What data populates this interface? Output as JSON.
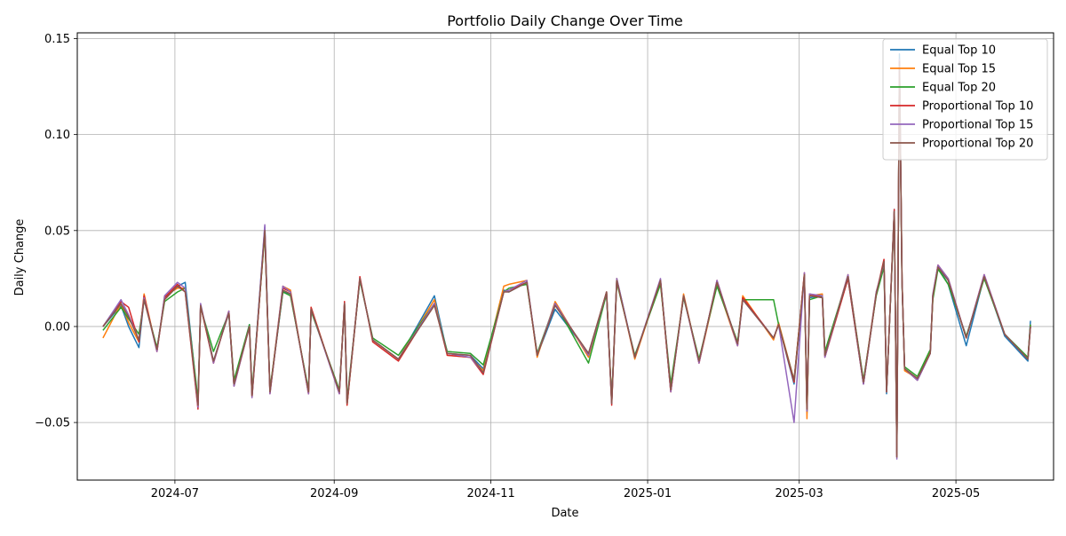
{
  "chart_data": {
    "type": "line",
    "title": "Portfolio Daily Change Over Time",
    "xlabel": "Date",
    "ylabel": "Daily Change",
    "xlim": [
      "2024-05-24",
      "2025-06-08"
    ],
    "ylim": [
      -0.08,
      0.153
    ],
    "x_ticks": [
      "2024-07",
      "2024-09",
      "2024-11",
      "2025-01",
      "2025-03",
      "2025-05"
    ],
    "y_ticks": [
      "−0.05",
      "0.00",
      "0.05",
      "0.10",
      "0.15"
    ],
    "y_tick_values": [
      -0.05,
      0.0,
      0.05,
      0.1,
      0.15
    ],
    "grid": true,
    "legend_position": "top-right",
    "x": [
      "2024-06-03",
      "2024-06-10",
      "2024-06-13",
      "2024-06-17",
      "2024-06-19",
      "2024-06-24",
      "2024-06-27",
      "2024-07-02",
      "2024-07-05",
      "2024-07-10",
      "2024-07-11",
      "2024-07-16",
      "2024-07-22",
      "2024-07-24",
      "2024-07-30",
      "2024-07-31",
      "2024-08-05",
      "2024-08-07",
      "2024-08-12",
      "2024-08-15",
      "2024-08-22",
      "2024-08-23",
      "2024-09-03",
      "2024-09-05",
      "2024-09-06",
      "2024-09-11",
      "2024-09-16",
      "2024-09-26",
      "2024-10-10",
      "2024-10-15",
      "2024-10-24",
      "2024-10-29",
      "2024-11-06",
      "2024-11-08",
      "2024-11-15",
      "2024-11-19",
      "2024-11-26",
      "2024-12-09",
      "2024-12-16",
      "2024-12-18",
      "2024-12-20",
      "2024-12-27",
      "2025-01-06",
      "2025-01-10",
      "2025-01-15",
      "2025-01-21",
      "2025-01-28",
      "2025-02-05",
      "2025-02-07",
      "2025-02-19",
      "2025-02-21",
      "2025-02-27",
      "2025-03-03",
      "2025-03-04",
      "2025-03-05",
      "2025-03-10",
      "2025-03-11",
      "2025-03-20",
      "2025-03-26",
      "2025-03-31",
      "2025-04-03",
      "2025-04-04",
      "2025-04-07",
      "2025-04-08",
      "2025-04-09",
      "2025-04-10",
      "2025-04-11",
      "2025-04-16",
      "2025-04-21",
      "2025-04-22",
      "2025-04-24",
      "2025-04-28",
      "2025-05-05",
      "2025-05-12",
      "2025-05-20",
      "2025-05-29",
      "2025-05-30"
    ],
    "series": [
      {
        "name": "Equal Top 10",
        "color": "#1f77b4",
        "values": [
          0,
          0.011,
          0,
          -0.011,
          0.015,
          -0.012,
          0.015,
          0.021,
          0.023,
          -0.04,
          0.011,
          -0.018,
          0.007,
          -0.031,
          0.001,
          -0.036,
          0.052,
          -0.034,
          0.018,
          0.017,
          -0.034,
          0.009,
          -0.034,
          0.012,
          -0.04,
          0.025,
          -0.007,
          -0.017,
          0.016,
          -0.014,
          -0.015,
          -0.022,
          0.019,
          0.018,
          0.023,
          -0.015,
          0.009,
          -0.014,
          0.017,
          -0.04,
          0.025,
          -0.016,
          0.024,
          -0.033,
          0.016,
          -0.018,
          0.023,
          -0.009,
          0.015,
          -0.006,
          0.001,
          -0.03,
          0.027,
          -0.045,
          0.015,
          0.016,
          -0.015,
          0.025,
          -0.03,
          0.017,
          0.034,
          -0.035,
          0.061,
          -0.068,
          0.142,
          0.024,
          -0.022,
          -0.028,
          -0.014,
          0.016,
          0.031,
          0.022,
          -0.01,
          0.026,
          -0.005,
          -0.018,
          0.003
        ]
      },
      {
        "name": "Equal Top 15",
        "color": "#ff7f0e",
        "values": [
          -0.006,
          0.012,
          0.002,
          -0.008,
          0.017,
          -0.013,
          0.016,
          0.02,
          0.02,
          -0.042,
          0.011,
          -0.019,
          0.008,
          -0.03,
          0,
          -0.036,
          0.05,
          -0.034,
          0.021,
          0.019,
          -0.035,
          0.01,
          -0.035,
          0.012,
          -0.041,
          0.025,
          -0.007,
          -0.017,
          0.014,
          -0.015,
          -0.016,
          -0.023,
          0.021,
          0.022,
          0.024,
          -0.016,
          0.013,
          -0.016,
          0.018,
          -0.039,
          0.025,
          -0.017,
          0.024,
          -0.034,
          0.017,
          -0.019,
          0.022,
          -0.01,
          0.016,
          -0.007,
          0.002,
          -0.028,
          0.027,
          -0.048,
          0.016,
          0.017,
          -0.015,
          0.027,
          -0.029,
          0.018,
          0.033,
          -0.034,
          0.06,
          -0.067,
          0.139,
          0.025,
          -0.023,
          -0.027,
          -0.013,
          0.015,
          0.032,
          0.024,
          -0.006,
          0.026,
          -0.004,
          -0.017,
          0.001
        ]
      },
      {
        "name": "Equal Top 20",
        "color": "#2ca02c",
        "values": [
          -0.002,
          0.01,
          0.004,
          -0.004,
          0.014,
          -0.011,
          0.013,
          0.018,
          0.02,
          -0.038,
          0.01,
          -0.013,
          0.007,
          -0.028,
          0.001,
          -0.034,
          0.048,
          -0.033,
          0.018,
          0.016,
          -0.033,
          0.008,
          -0.033,
          0.011,
          -0.038,
          0.024,
          -0.006,
          -0.015,
          0.012,
          -0.013,
          -0.014,
          -0.02,
          0.018,
          0.02,
          0.022,
          -0.014,
          0.012,
          -0.019,
          0.017,
          -0.038,
          0.023,
          -0.015,
          0.022,
          -0.03,
          0.015,
          -0.017,
          0.021,
          -0.008,
          0.014,
          0.014,
          0.001,
          -0.028,
          0.025,
          -0.044,
          0.014,
          0.016,
          -0.013,
          0.026,
          -0.028,
          0.016,
          0.031,
          -0.033,
          0.058,
          -0.066,
          0.136,
          0.023,
          -0.021,
          -0.026,
          -0.012,
          0.014,
          0.03,
          0.022,
          -0.005,
          0.025,
          -0.004,
          -0.016,
          0.001
        ]
      },
      {
        "name": "Proportional Top 10",
        "color": "#d62728",
        "values": [
          0,
          0.013,
          0.01,
          -0.008,
          0.016,
          -0.013,
          0.015,
          0.022,
          0.018,
          -0.043,
          0.011,
          -0.019,
          0.008,
          -0.031,
          0,
          -0.037,
          0.05,
          -0.035,
          0.02,
          0.018,
          -0.035,
          0.01,
          -0.035,
          0.013,
          -0.041,
          0.026,
          -0.008,
          -0.018,
          0.012,
          -0.015,
          -0.016,
          -0.025,
          0.018,
          0.019,
          0.023,
          -0.015,
          0.012,
          -0.015,
          0.018,
          -0.041,
          0.024,
          -0.016,
          0.024,
          -0.034,
          0.016,
          -0.019,
          0.024,
          -0.01,
          0.015,
          -0.006,
          0.001,
          -0.029,
          0.028,
          -0.044,
          0.017,
          0.015,
          -0.016,
          0.025,
          -0.03,
          0.017,
          0.035,
          -0.034,
          0.061,
          -0.068,
          0.138,
          0.024,
          -0.022,
          -0.028,
          -0.014,
          0.016,
          0.032,
          0.025,
          -0.006,
          0.027,
          -0.004,
          -0.017,
          0
        ]
      },
      {
        "name": "Proportional Top 15",
        "color": "#9467bd",
        "values": [
          0,
          0.014,
          0.006,
          -0.007,
          0.015,
          -0.013,
          0.016,
          0.023,
          0.02,
          -0.042,
          0.012,
          -0.019,
          0.008,
          -0.031,
          0,
          -0.037,
          0.053,
          -0.035,
          0.021,
          0.018,
          -0.035,
          0.009,
          -0.035,
          0.012,
          -0.04,
          0.025,
          -0.007,
          -0.017,
          0.012,
          -0.014,
          -0.016,
          -0.024,
          0.018,
          0.019,
          0.024,
          -0.015,
          0.012,
          -0.015,
          0.018,
          -0.04,
          0.025,
          -0.016,
          0.025,
          -0.034,
          0.016,
          -0.019,
          0.024,
          -0.01,
          0.014,
          -0.006,
          0.001,
          -0.05,
          0.028,
          -0.044,
          0.017,
          0.016,
          -0.016,
          0.027,
          -0.03,
          0.018,
          0.033,
          -0.034,
          0.06,
          -0.069,
          0.139,
          0.024,
          -0.022,
          -0.028,
          -0.014,
          0.017,
          0.032,
          0.025,
          -0.006,
          0.027,
          -0.004,
          -0.017,
          0
        ]
      },
      {
        "name": "Proportional Top 20",
        "color": "#8c564b",
        "values": [
          0,
          0.012,
          0.005,
          -0.007,
          0.014,
          -0.012,
          0.014,
          0.021,
          0.018,
          -0.041,
          0.011,
          -0.018,
          0.007,
          -0.03,
          0,
          -0.036,
          0.05,
          -0.034,
          0.019,
          0.017,
          -0.034,
          0.009,
          -0.034,
          0.012,
          -0.04,
          0.025,
          -0.007,
          -0.017,
          0.011,
          -0.014,
          -0.015,
          -0.024,
          0.018,
          0.018,
          0.023,
          -0.015,
          0.011,
          -0.014,
          0.018,
          -0.04,
          0.024,
          -0.016,
          0.024,
          -0.033,
          0.016,
          -0.018,
          0.023,
          -0.009,
          0.014,
          -0.006,
          0.001,
          -0.028,
          0.027,
          -0.043,
          0.016,
          0.015,
          -0.015,
          0.026,
          -0.029,
          0.017,
          0.034,
          -0.034,
          0.06,
          -0.068,
          0.138,
          0.024,
          -0.022,
          -0.027,
          -0.014,
          0.016,
          0.031,
          0.024,
          -0.006,
          0.026,
          -0.004,
          -0.017,
          0
        ]
      }
    ]
  }
}
